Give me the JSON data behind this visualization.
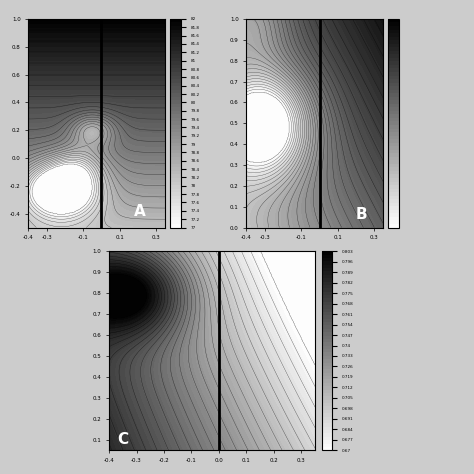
{
  "A": {
    "xlim": [
      -0.4,
      0.35
    ],
    "ylim": [
      -0.5,
      1.0
    ],
    "vmin": 77,
    "vmax": 82,
    "xticks": [
      -0.4,
      -0.3,
      -0.1,
      0.1,
      0.3
    ],
    "yticks": [
      -0.4,
      -0.2,
      0.0,
      0.2,
      0.4,
      0.6,
      0.8,
      1.0
    ],
    "colorbar_ticks": [
      82,
      81.8,
      81.6,
      81.4,
      81.2,
      81,
      80.8,
      80.6,
      80.4,
      80.2,
      80,
      79.8,
      79.6,
      79.4,
      79.2,
      79,
      78.8,
      78.6,
      78.4,
      78.2,
      78,
      77.8,
      77.6,
      77.4,
      77.2,
      77
    ],
    "label": "A",
    "vline_x": 0.0
  },
  "B": {
    "xlim": [
      -0.4,
      0.35
    ],
    "ylim": [
      0.0,
      1.0
    ],
    "vmin": 0.0,
    "vmax": 1.0,
    "xticks": [
      -0.4,
      -0.3,
      -0.1,
      0.1,
      0.3
    ],
    "yticks": [
      0.0,
      0.1,
      0.2,
      0.3,
      0.4,
      0.5,
      0.6,
      0.7,
      0.8,
      0.9,
      1.0
    ],
    "colorbar_ticks": [],
    "label": "B",
    "vline_x": 0.0
  },
  "C": {
    "xlim": [
      -0.4,
      0.35
    ],
    "ylim": [
      0.05,
      1.0
    ],
    "vmin": 0.67,
    "vmax": 0.803,
    "xticks": [
      -0.4,
      -0.3,
      -0.2,
      -0.1,
      0.0,
      0.1,
      0.2,
      0.3
    ],
    "yticks": [
      0.1,
      0.2,
      0.3,
      0.4,
      0.5,
      0.6,
      0.7,
      0.8,
      0.9,
      1.0
    ],
    "colorbar_ticks": [
      0.803,
      0.796,
      0.789,
      0.782,
      0.775,
      0.768,
      0.761,
      0.754,
      0.747,
      0.74,
      0.733,
      0.726,
      0.719,
      0.712,
      0.705,
      0.698,
      0.691,
      0.684,
      0.677,
      0.67
    ],
    "label": "C",
    "vline_x": 0.0
  },
  "fig_facecolor": "#cccccc"
}
